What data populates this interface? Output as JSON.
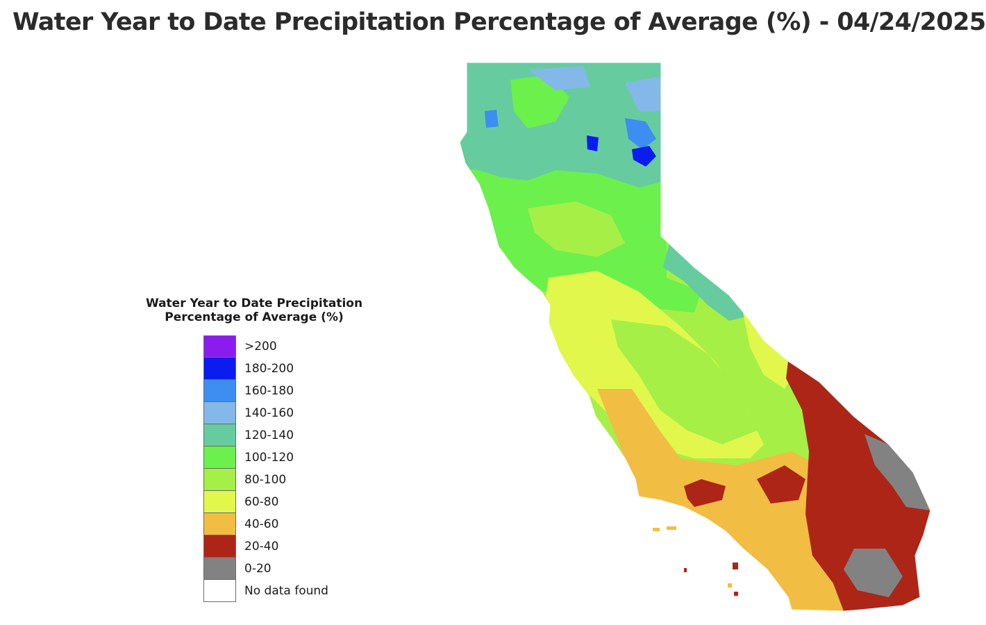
{
  "title": "Water Year to Date Precipitation Percentage of Average (%) - 04/24/2025",
  "legend": {
    "title_line1": "Water Year to Date Precipitation",
    "title_line2": "Percentage of Average (%)",
    "items": [
      {
        "label": ">200",
        "color": "#8a1cf0"
      },
      {
        "label": "180-200",
        "color": "#0b1cf0"
      },
      {
        "label": "160-180",
        "color": "#3d8ef0"
      },
      {
        "label": "140-160",
        "color": "#84b8e8"
      },
      {
        "label": "120-140",
        "color": "#66cc9f"
      },
      {
        "label": "100-120",
        "color": "#6cf04c"
      },
      {
        "label": "80-100",
        "color": "#a6ef47"
      },
      {
        "label": "60-80",
        "color": "#e2f74c"
      },
      {
        "label": "40-60",
        "color": "#f2bd43"
      },
      {
        "label": "20-40",
        "color": "#ad2517"
      },
      {
        "label": "0-20",
        "color": "#828282"
      },
      {
        "label": "No data found",
        "color": "#ffffff"
      }
    ]
  },
  "map": {
    "region": "California",
    "colors": {
      "c200": "#8a1cf0",
      "c180": "#0b1cf0",
      "c160": "#3d8ef0",
      "c140": "#84b8e8",
      "c120": "#66cc9f",
      "c100": "#6cf04c",
      "c80": "#a6ef47",
      "c60": "#e2f74c",
      "c40": "#f2bd43",
      "c20": "#ad2517",
      "c0": "#828282"
    }
  }
}
